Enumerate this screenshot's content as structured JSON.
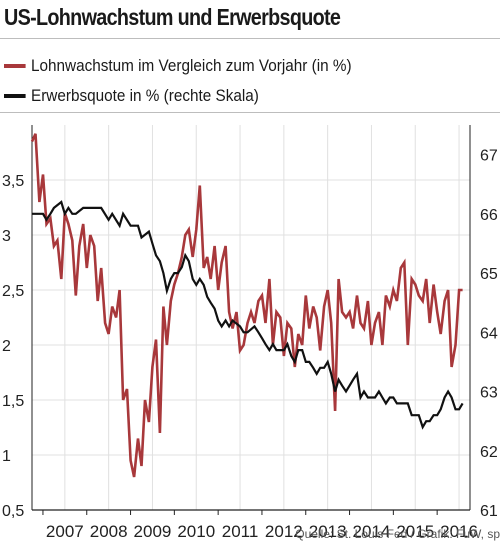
{
  "colors": {
    "wage": "#a8383b",
    "participation": "#111111",
    "grid": "#e0e0e0",
    "axis": "#222222"
  },
  "title": "US-Lohnwachstum und Erwerbsquote",
  "source": "Quelle:  St. Louis Fed / Grafik: FuW, sp",
  "chart_data": {
    "type": "line",
    "title": "US-Lohnwachstum und Erwerbsquote",
    "x": {
      "ticks": [
        "2007",
        "2008",
        "2009",
        "2010",
        "2011",
        "2012",
        "2013",
        "2014",
        "2015",
        "2016"
      ],
      "range": [
        2006.75,
        2016.75
      ]
    },
    "y_left": {
      "ticks": [
        "0,5",
        "1",
        "1,5",
        "2",
        "2,5",
        "3",
        "3,5"
      ],
      "range": [
        0.5,
        4.0
      ]
    },
    "y_right": {
      "ticks": [
        "61",
        "62",
        "63",
        "64",
        "65",
        "66",
        "67"
      ],
      "range": [
        61,
        67.5
      ]
    },
    "grid": true,
    "legend_position": "top-left",
    "series": [
      {
        "name": "Lohnwachstum im Vergleich zum Vorjahr (in %)",
        "axis": "left",
        "color": "#a8383b",
        "points": [
          [
            2006.75,
            3.85
          ],
          [
            2006.83,
            3.92
          ],
          [
            2006.92,
            3.3
          ],
          [
            2007.0,
            3.55
          ],
          [
            2007.08,
            3.1
          ],
          [
            2007.17,
            3.15
          ],
          [
            2007.25,
            2.9
          ],
          [
            2007.33,
            2.95
          ],
          [
            2007.42,
            2.6
          ],
          [
            2007.5,
            3.2
          ],
          [
            2007.58,
            3.1
          ],
          [
            2007.67,
            2.95
          ],
          [
            2007.75,
            2.45
          ],
          [
            2007.83,
            2.9
          ],
          [
            2007.92,
            3.1
          ],
          [
            2008.0,
            2.7
          ],
          [
            2008.08,
            3.0
          ],
          [
            2008.17,
            2.9
          ],
          [
            2008.25,
            2.4
          ],
          [
            2008.33,
            2.7
          ],
          [
            2008.42,
            2.2
          ],
          [
            2008.5,
            2.1
          ],
          [
            2008.58,
            2.35
          ],
          [
            2008.67,
            2.25
          ],
          [
            2008.75,
            2.5
          ],
          [
            2008.83,
            1.5
          ],
          [
            2008.92,
            1.6
          ],
          [
            2009.0,
            0.95
          ],
          [
            2009.08,
            0.8
          ],
          [
            2009.17,
            1.15
          ],
          [
            2009.25,
            0.9
          ],
          [
            2009.33,
            1.5
          ],
          [
            2009.42,
            1.3
          ],
          [
            2009.5,
            1.8
          ],
          [
            2009.58,
            2.05
          ],
          [
            2009.67,
            1.2
          ],
          [
            2009.75,
            2.35
          ],
          [
            2009.83,
            2.0
          ],
          [
            2009.92,
            2.4
          ],
          [
            2010.0,
            2.55
          ],
          [
            2010.08,
            2.65
          ],
          [
            2010.17,
            2.8
          ],
          [
            2010.25,
            3.0
          ],
          [
            2010.33,
            3.05
          ],
          [
            2010.42,
            2.8
          ],
          [
            2010.5,
            3.05
          ],
          [
            2010.58,
            3.45
          ],
          [
            2010.67,
            2.7
          ],
          [
            2010.75,
            2.8
          ],
          [
            2010.83,
            2.6
          ],
          [
            2010.92,
            2.9
          ],
          [
            2011.0,
            2.5
          ],
          [
            2011.08,
            2.75
          ],
          [
            2011.17,
            2.9
          ],
          [
            2011.25,
            2.3
          ],
          [
            2011.33,
            2.15
          ],
          [
            2011.42,
            2.3
          ],
          [
            2011.5,
            1.95
          ],
          [
            2011.58,
            2.0
          ],
          [
            2011.67,
            2.2
          ],
          [
            2011.75,
            2.3
          ],
          [
            2011.83,
            2.2
          ],
          [
            2011.92,
            2.4
          ],
          [
            2012.0,
            2.45
          ],
          [
            2012.08,
            2.2
          ],
          [
            2012.17,
            2.6
          ],
          [
            2012.25,
            2.0
          ],
          [
            2012.33,
            2.3
          ],
          [
            2012.42,
            2.25
          ],
          [
            2012.5,
            1.9
          ],
          [
            2012.58,
            2.2
          ],
          [
            2012.67,
            2.15
          ],
          [
            2012.75,
            1.8
          ],
          [
            2012.83,
            2.1
          ],
          [
            2012.92,
            2.0
          ],
          [
            2013.0,
            2.45
          ],
          [
            2013.08,
            2.15
          ],
          [
            2013.17,
            2.35
          ],
          [
            2013.25,
            2.25
          ],
          [
            2013.33,
            1.95
          ],
          [
            2013.42,
            2.35
          ],
          [
            2013.5,
            2.5
          ],
          [
            2013.58,
            2.2
          ],
          [
            2013.67,
            1.4
          ],
          [
            2013.75,
            2.6
          ],
          [
            2013.83,
            2.3
          ],
          [
            2013.92,
            2.25
          ],
          [
            2014.0,
            2.3
          ],
          [
            2014.08,
            2.15
          ],
          [
            2014.17,
            2.45
          ],
          [
            2014.25,
            2.2
          ],
          [
            2014.33,
            2.15
          ],
          [
            2014.42,
            2.4
          ],
          [
            2014.5,
            2.0
          ],
          [
            2014.58,
            2.2
          ],
          [
            2014.67,
            2.3
          ],
          [
            2014.75,
            2.0
          ],
          [
            2014.83,
            2.45
          ],
          [
            2014.92,
            2.35
          ],
          [
            2015.0,
            2.5
          ],
          [
            2015.08,
            2.4
          ],
          [
            2015.17,
            2.7
          ],
          [
            2015.25,
            2.75
          ],
          [
            2015.33,
            2.0
          ],
          [
            2015.42,
            2.6
          ],
          [
            2015.5,
            2.55
          ],
          [
            2015.58,
            2.45
          ],
          [
            2015.67,
            2.4
          ],
          [
            2015.75,
            2.6
          ],
          [
            2015.83,
            2.2
          ],
          [
            2015.92,
            2.55
          ],
          [
            2016.0,
            2.3
          ],
          [
            2016.08,
            2.1
          ],
          [
            2016.17,
            2.4
          ],
          [
            2016.25,
            2.5
          ],
          [
            2016.33,
            1.8
          ],
          [
            2016.42,
            2.0
          ],
          [
            2016.5,
            2.5
          ],
          [
            2016.58,
            2.5
          ]
        ]
      },
      {
        "name": "Erwerbsquote in % (rechte Skala)",
        "axis": "right",
        "color": "#111111",
        "points": [
          [
            2006.75,
            66.0
          ],
          [
            2007.0,
            66.0
          ],
          [
            2007.08,
            65.9
          ],
          [
            2007.17,
            66.0
          ],
          [
            2007.25,
            66.1
          ],
          [
            2007.42,
            66.2
          ],
          [
            2007.5,
            66.0
          ],
          [
            2007.58,
            66.1
          ],
          [
            2007.67,
            66.0
          ],
          [
            2007.75,
            66.0
          ],
          [
            2007.92,
            66.1
          ],
          [
            2008.0,
            66.1
          ],
          [
            2008.33,
            66.1
          ],
          [
            2008.5,
            65.9
          ],
          [
            2008.58,
            66.0
          ],
          [
            2008.75,
            65.8
          ],
          [
            2008.83,
            66.0
          ],
          [
            2009.0,
            65.8
          ],
          [
            2009.17,
            65.8
          ],
          [
            2009.25,
            65.6
          ],
          [
            2009.42,
            65.7
          ],
          [
            2009.5,
            65.5
          ],
          [
            2009.58,
            65.3
          ],
          [
            2009.67,
            65.2
          ],
          [
            2009.75,
            65.0
          ],
          [
            2009.83,
            64.7
          ],
          [
            2009.92,
            64.9
          ],
          [
            2010.0,
            65.0
          ],
          [
            2010.08,
            65.0
          ],
          [
            2010.17,
            65.1
          ],
          [
            2010.25,
            65.3
          ],
          [
            2010.33,
            65.2
          ],
          [
            2010.42,
            64.9
          ],
          [
            2010.5,
            64.8
          ],
          [
            2010.58,
            64.9
          ],
          [
            2010.67,
            64.8
          ],
          [
            2010.75,
            64.6
          ],
          [
            2010.83,
            64.5
          ],
          [
            2010.92,
            64.4
          ],
          [
            2011.0,
            64.2
          ],
          [
            2011.08,
            64.1
          ],
          [
            2011.17,
            64.2
          ],
          [
            2011.25,
            64.1
          ],
          [
            2011.33,
            64.2
          ],
          [
            2011.5,
            64.1
          ],
          [
            2011.58,
            64.0
          ],
          [
            2011.67,
            64.0
          ],
          [
            2011.83,
            64.1
          ],
          [
            2011.92,
            64.0
          ],
          [
            2012.0,
            63.9
          ],
          [
            2012.08,
            63.8
          ],
          [
            2012.17,
            63.7
          ],
          [
            2012.25,
            63.8
          ],
          [
            2012.33,
            63.7
          ],
          [
            2012.5,
            63.7
          ],
          [
            2012.58,
            63.8
          ],
          [
            2012.67,
            63.6
          ],
          [
            2012.75,
            63.5
          ],
          [
            2012.83,
            63.7
          ],
          [
            2012.92,
            63.7
          ],
          [
            2013.0,
            63.5
          ],
          [
            2013.08,
            63.5
          ],
          [
            2013.17,
            63.4
          ],
          [
            2013.25,
            63.3
          ],
          [
            2013.33,
            63.4
          ],
          [
            2013.42,
            63.4
          ],
          [
            2013.5,
            63.5
          ],
          [
            2013.58,
            63.3
          ],
          [
            2013.67,
            63.0
          ],
          [
            2013.75,
            63.2
          ],
          [
            2013.83,
            63.1
          ],
          [
            2013.92,
            63.0
          ],
          [
            2014.0,
            63.1
          ],
          [
            2014.08,
            63.2
          ],
          [
            2014.17,
            63.3
          ],
          [
            2014.25,
            62.9
          ],
          [
            2014.33,
            63.0
          ],
          [
            2014.42,
            62.9
          ],
          [
            2014.5,
            62.9
          ],
          [
            2014.58,
            62.9
          ],
          [
            2014.67,
            63.0
          ],
          [
            2014.75,
            62.9
          ],
          [
            2014.83,
            62.8
          ],
          [
            2014.92,
            62.9
          ],
          [
            2015.0,
            62.9
          ],
          [
            2015.08,
            62.8
          ],
          [
            2015.17,
            62.8
          ],
          [
            2015.25,
            62.8
          ],
          [
            2015.33,
            62.8
          ],
          [
            2015.42,
            62.6
          ],
          [
            2015.5,
            62.6
          ],
          [
            2015.58,
            62.6
          ],
          [
            2015.67,
            62.4
          ],
          [
            2015.75,
            62.5
          ],
          [
            2015.83,
            62.5
          ],
          [
            2015.92,
            62.6
          ],
          [
            2016.0,
            62.6
          ],
          [
            2016.08,
            62.7
          ],
          [
            2016.17,
            62.9
          ],
          [
            2016.25,
            63.0
          ],
          [
            2016.33,
            62.9
          ],
          [
            2016.42,
            62.7
          ],
          [
            2016.5,
            62.7
          ],
          [
            2016.58,
            62.8
          ]
        ]
      }
    ]
  }
}
